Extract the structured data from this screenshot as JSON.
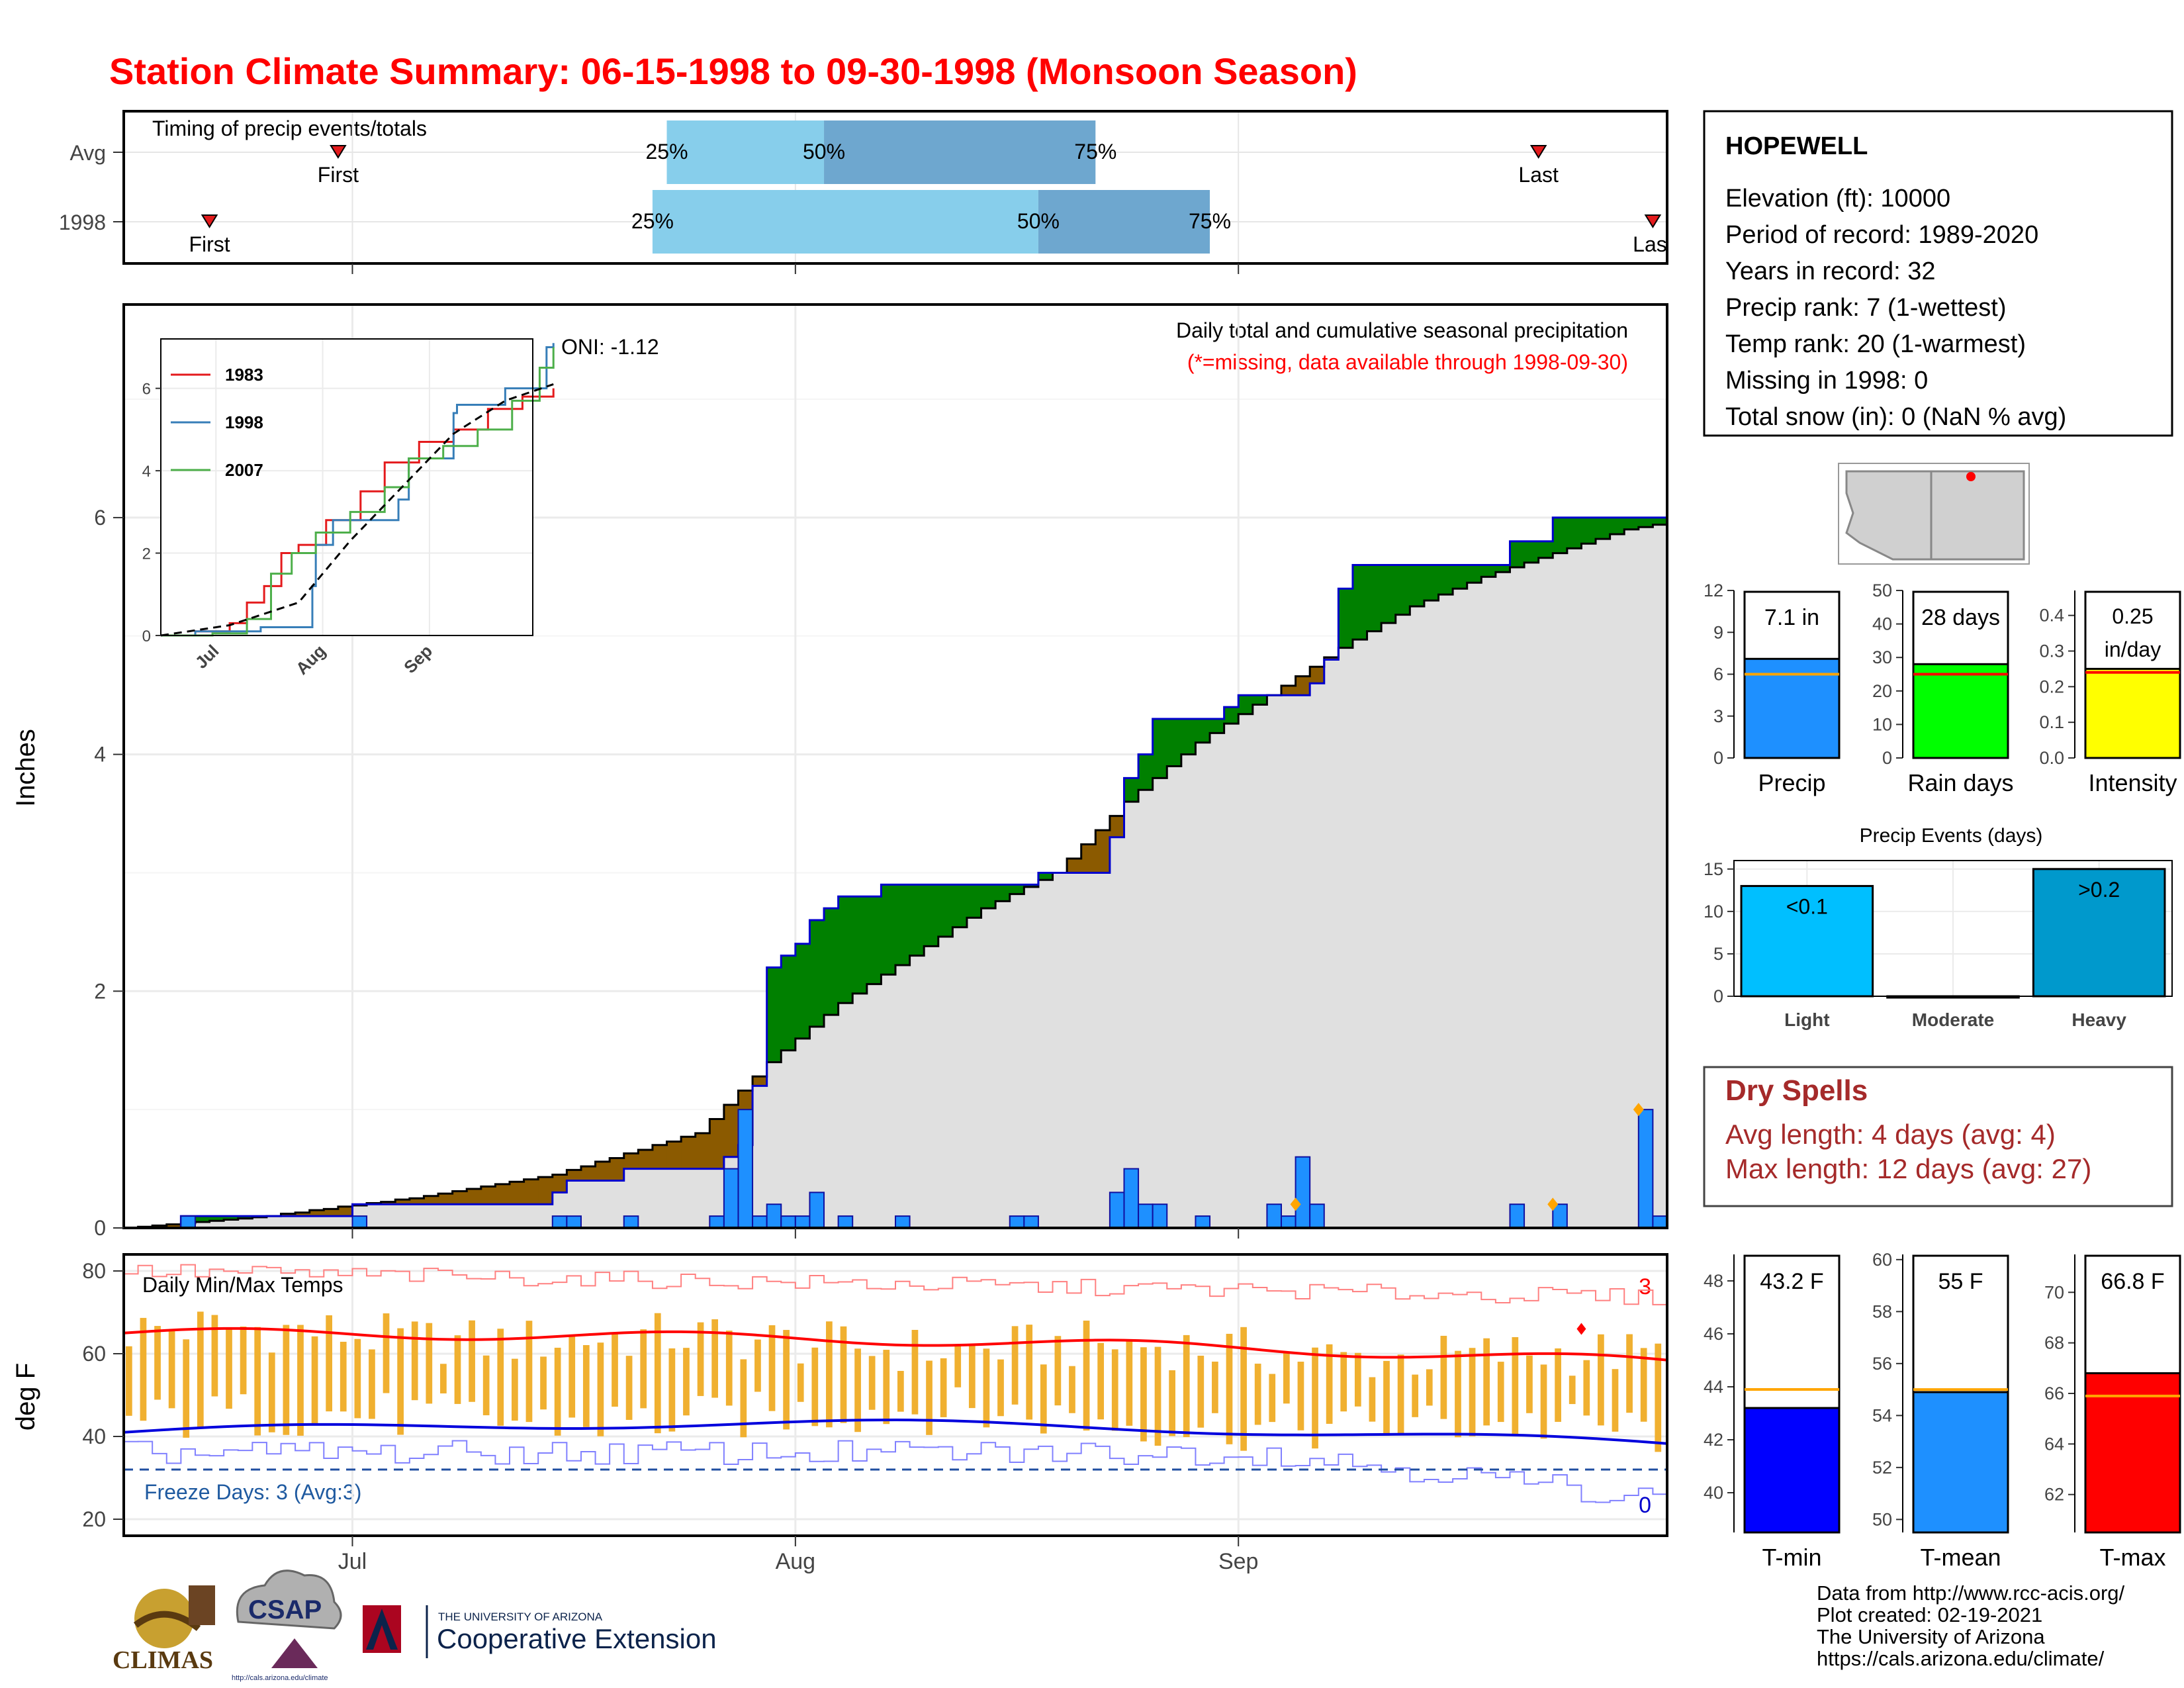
{
  "title": "Station Climate Summary: 06-15-1998 to 09-30-1998 (Monsoon Season)",
  "timing": {
    "label": "Timing of precip events/totals",
    "rows": [
      {
        "name": "Avg",
        "first_label": "First",
        "last_label": "Last",
        "p25": "25%",
        "p50": "50%",
        "p75": "75%",
        "first_date": "1998-06-30",
        "last_date": "1998-09-22",
        "p25_date": "1998-07-23",
        "p50_date": "1998-08-03",
        "p75_date": "1998-08-22"
      },
      {
        "name": "1998",
        "first_label": "First",
        "last_label": "Last",
        "p25": "25%",
        "p50": "50%",
        "p75": "75%",
        "first_date": "1998-06-21",
        "last_date": "1998-09-30",
        "p25_date": "1998-07-22",
        "p50_date": "1998-08-18",
        "p75_date": "1998-08-30"
      }
    ],
    "colors": {
      "light": "#87ceeb",
      "dark": "#6ea7cf",
      "marker": "#e31a1c"
    }
  },
  "precip_panel": {
    "ylabel": "Inches",
    "title": "Daily total and cumulative seasonal precipitation",
    "subtitle": "(*=missing, data available through 1998-09-30)",
    "oni": "ONI: -1.12",
    "y_ticks": [
      "0",
      "2",
      "4",
      "6"
    ],
    "colors": {
      "above": "#008000",
      "below": "#8b5a00",
      "normal_fill": "#e0e0e0",
      "bars": "#1e90ff",
      "line": "#0000cc"
    }
  },
  "inset": {
    "legend": [
      "1983",
      "1998",
      "2007"
    ],
    "legend_colors": [
      "#e41a1c",
      "#377eb8",
      "#4daf4a"
    ],
    "y_ticks": [
      "0",
      "2",
      "4",
      "6"
    ],
    "x_ticks": [
      "Jul",
      "Aug",
      "Sep"
    ]
  },
  "temp_panel": {
    "ylabel": "deg F",
    "title": "Daily Min/Max Temps",
    "freeze_text": "Freeze Days: 3 (Avg:3)",
    "y_ticks": [
      "20",
      "40",
      "60",
      "80"
    ],
    "top_count": "3",
    "bottom_count": "0",
    "colors": {
      "bars": "#f0b030",
      "max_avg": "#ff0000",
      "min_avg": "#0000dd"
    }
  },
  "x_ticks": [
    "Jul",
    "Aug",
    "Sep"
  ],
  "station": {
    "name": "HOPEWELL",
    "lines": [
      "Elevation (ft): 10000",
      "Period of record: 1989-2020",
      "Years in record: 32",
      "Precip rank: 7 (1-wettest)",
      "Temp rank: 20 (1-warmest)",
      "Missing in 1998: 0",
      "Total snow (in): 0 (NaN % avg)"
    ]
  },
  "summary_bars": [
    {
      "label": "Precip",
      "value_text": "7.1 in",
      "value": 7.1,
      "avg": 6.0,
      "color": "#1e90ff",
      "ylim": [
        0,
        12
      ],
      "ticks": [
        "0",
        "3",
        "6",
        "9",
        "12"
      ]
    },
    {
      "label": "Rain days",
      "value_text": "28 days",
      "value": 28,
      "avg": 25,
      "color": "#00ff00",
      "ylim": [
        0,
        50
      ],
      "ticks": [
        "0",
        "10",
        "20",
        "30",
        "40",
        "50"
      ]
    },
    {
      "label": "Intensity",
      "value_text": "0.25 in/day",
      "value_line1": "0.25",
      "value_line2": "in/day",
      "value": 0.25,
      "avg": 0.24,
      "color": "#ffff00",
      "ylim": [
        0,
        0.47
      ],
      "ticks": [
        "0.0",
        "0.1",
        "0.2",
        "0.3",
        "0.4"
      ]
    }
  ],
  "events": {
    "title": "Precip Events (days)",
    "categories": [
      "Light",
      "Moderate",
      "Heavy"
    ],
    "bar_labels": [
      "<0.1",
      "",
      ">0.2"
    ],
    "values": [
      13,
      0,
      15
    ],
    "colors": [
      "#00bfff",
      "#1e90ff",
      "#0099cc"
    ],
    "ticks": [
      "0",
      "5",
      "10",
      "15"
    ]
  },
  "dry_spells": {
    "title": "Dry Spells",
    "avg": "Avg length: 4 days (avg: 4)",
    "max": "Max length: 12 days (avg: 27)"
  },
  "temp_bars": [
    {
      "label": "T-min",
      "value_text": "43.2 F",
      "value": 43.2,
      "avg": 43.9,
      "color": "#0000ff",
      "ylim": [
        38.5,
        49
      ],
      "ticks": [
        "40",
        "42",
        "44",
        "46",
        "48"
      ]
    },
    {
      "label": "T-mean",
      "value_text": "55 F",
      "value": 54.9,
      "avg": 55.0,
      "color": "#1e90ff",
      "ylim": [
        49.5,
        60.2
      ],
      "ticks": [
        "50",
        "52",
        "54",
        "56",
        "58",
        "60"
      ]
    },
    {
      "label": "T-max",
      "value_text": "66.8 F",
      "value": 66.8,
      "avg": 65.9,
      "color": "#ff0000",
      "ylim": [
        60.5,
        71.5
      ],
      "ticks": [
        "62",
        "64",
        "66",
        "68",
        "70"
      ]
    }
  ],
  "logos": {
    "climas": "CLIMAS",
    "csap": "CSAP",
    "csap_url": "http://cals.arizona.edu/climate",
    "ua_small": "THE UNIVERSITY OF ARIZONA",
    "ua_big": "Cooperative Extension"
  },
  "credits": [
    "Data from http://www.rcc-acis.org/",
    "Plot created: 02-19-2021",
    "The University of Arizona",
    "https://cals.arizona.edu/climate/"
  ],
  "chart_data": {
    "type": "area",
    "title": "Daily total and cumulative seasonal precipitation",
    "ylabel": "Inches",
    "x": [
      "1998-06-15",
      "1998-09-30"
    ],
    "ylim": [
      0,
      7.8
    ],
    "daily_precip": [
      {
        "date": "1998-06-19",
        "in": 0.1
      },
      {
        "date": "1998-07-01",
        "in": 0.1
      },
      {
        "date": "1998-07-15",
        "in": 0.1
      },
      {
        "date": "1998-07-16",
        "in": 0.1
      },
      {
        "date": "1998-07-20",
        "in": 0.1
      },
      {
        "date": "1998-07-26",
        "in": 0.1
      },
      {
        "date": "1998-07-27",
        "in": 0.5
      },
      {
        "date": "1998-07-28",
        "in": 1.0
      },
      {
        "date": "1998-07-29",
        "in": 0.1
      },
      {
        "date": "1998-07-30",
        "in": 0.2
      },
      {
        "date": "1998-07-31",
        "in": 0.1
      },
      {
        "date": "1998-08-01",
        "in": 0.1
      },
      {
        "date": "1998-08-02",
        "in": 0.3
      },
      {
        "date": "1998-08-04",
        "in": 0.1
      },
      {
        "date": "1998-08-08",
        "in": 0.1
      },
      {
        "date": "1998-08-16",
        "in": 0.1
      },
      {
        "date": "1998-08-17",
        "in": 0.1
      },
      {
        "date": "1998-08-23",
        "in": 0.3
      },
      {
        "date": "1998-08-24",
        "in": 0.5
      },
      {
        "date": "1998-08-25",
        "in": 0.2
      },
      {
        "date": "1998-08-26",
        "in": 0.2
      },
      {
        "date": "1998-08-29",
        "in": 0.1
      },
      {
        "date": "1998-09-03",
        "in": 0.2
      },
      {
        "date": "1998-09-04",
        "in": 0.1
      },
      {
        "date": "1998-09-05",
        "in": 0.6
      },
      {
        "date": "1998-09-06",
        "in": 0.2
      },
      {
        "date": "1998-09-20",
        "in": 0.2
      },
      {
        "date": "1998-09-23",
        "in": 0.2
      },
      {
        "date": "1998-09-29",
        "in": 1.0
      },
      {
        "date": "1998-09-30",
        "in": 0.1
      }
    ],
    "series": [
      {
        "name": "1998",
        "values": [
          [
            0,
            0
          ],
          [
            3,
            0
          ],
          [
            4,
            0.1
          ],
          [
            15,
            0.1
          ],
          [
            16,
            0.2
          ],
          [
            29,
            0.2
          ],
          [
            30,
            0.3
          ],
          [
            31,
            0.4
          ],
          [
            35,
            0.5
          ],
          [
            41,
            0.5
          ],
          [
            42,
            0.6
          ],
          [
            43,
            0.7
          ],
          [
            44,
            1.2
          ],
          [
            45,
            2.2
          ],
          [
            46,
            2.3
          ],
          [
            47,
            2.4
          ],
          [
            48,
            2.6
          ],
          [
            49,
            2.7
          ],
          [
            50,
            2.8
          ],
          [
            52,
            2.8
          ],
          [
            53,
            2.9
          ],
          [
            63,
            2.9
          ],
          [
            64,
            3.0
          ],
          [
            65,
            3.0
          ],
          [
            68,
            3.0
          ],
          [
            69,
            3.3
          ],
          [
            70,
            3.8
          ],
          [
            71,
            4.0
          ],
          [
            72,
            4.3
          ],
          [
            76,
            4.3
          ],
          [
            77,
            4.4
          ],
          [
            78,
            4.5
          ],
          [
            82,
            4.5
          ],
          [
            83,
            4.6
          ],
          [
            84,
            4.8
          ],
          [
            85,
            5.4
          ],
          [
            86,
            5.6
          ],
          [
            96,
            5.6
          ],
          [
            97,
            5.8
          ],
          [
            99,
            5.8
          ],
          [
            100,
            6.0
          ],
          [
            111,
            6.0
          ],
          [
            112,
            7.0
          ],
          [
            113,
            7.1
          ],
          [
            114,
            7.1
          ]
        ]
      },
      {
        "name": "Avg",
        "values": [
          [
            0,
            0
          ],
          [
            10,
            0.1
          ],
          [
            20,
            0.25
          ],
          [
            30,
            0.45
          ],
          [
            40,
            0.8
          ],
          [
            45,
            1.4
          ],
          [
            50,
            1.9
          ],
          [
            55,
            2.3
          ],
          [
            60,
            2.7
          ],
          [
            65,
            3.0
          ],
          [
            70,
            3.6
          ],
          [
            75,
            4.1
          ],
          [
            80,
            4.5
          ],
          [
            85,
            4.9
          ],
          [
            90,
            5.25
          ],
          [
            95,
            5.5
          ],
          [
            100,
            5.7
          ],
          [
            105,
            5.9
          ],
          [
            110,
            6.0
          ],
          [
            114,
            6.1
          ]
        ]
      }
    ],
    "inset_series": [
      {
        "name": "1983",
        "values": [
          [
            0,
            0
          ],
          [
            10,
            0.1
          ],
          [
            20,
            0.3
          ],
          [
            25,
            0.8
          ],
          [
            30,
            1.2
          ],
          [
            35,
            2.0
          ],
          [
            40,
            2.2
          ],
          [
            48,
            2.8
          ],
          [
            58,
            3.5
          ],
          [
            65,
            4.2
          ],
          [
            75,
            4.7
          ],
          [
            85,
            5.0
          ],
          [
            95,
            5.5
          ],
          [
            105,
            5.8
          ],
          [
            114,
            6.0
          ]
        ]
      },
      {
        "name": "1998",
        "values": [
          [
            0,
            0
          ],
          [
            10,
            0.1
          ],
          [
            29,
            0.2
          ],
          [
            44,
            1.2
          ],
          [
            45,
            2.2
          ],
          [
            50,
            2.8
          ],
          [
            69,
            3.3
          ],
          [
            72,
            4.3
          ],
          [
            85,
            5.4
          ],
          [
            86,
            5.6
          ],
          [
            100,
            6.0
          ],
          [
            112,
            7.0
          ],
          [
            114,
            7.1
          ]
        ]
      },
      {
        "name": "2007",
        "values": [
          [
            0,
            0
          ],
          [
            15,
            0.05
          ],
          [
            25,
            0.4
          ],
          [
            32,
            1.5
          ],
          [
            38,
            2.0
          ],
          [
            45,
            2.5
          ],
          [
            55,
            3.0
          ],
          [
            65,
            3.6
          ],
          [
            72,
            4.3
          ],
          [
            82,
            4.6
          ],
          [
            92,
            5.0
          ],
          [
            102,
            5.7
          ],
          [
            110,
            6.5
          ],
          [
            114,
            7.0
          ]
        ]
      },
      {
        "name": "Avg",
        "values": [
          [
            0,
            0
          ],
          [
            20,
            0.25
          ],
          [
            40,
            0.8
          ],
          [
            55,
            2.3
          ],
          [
            70,
            3.6
          ],
          [
            85,
            4.9
          ],
          [
            100,
            5.7
          ],
          [
            114,
            6.1
          ]
        ]
      }
    ],
    "temps": {
      "max_avg_start": 65,
      "max_avg_end": 58,
      "min_avg_start": 41,
      "min_avg_end": 38,
      "freeze_line": 32,
      "ylim": [
        16,
        84
      ]
    }
  }
}
